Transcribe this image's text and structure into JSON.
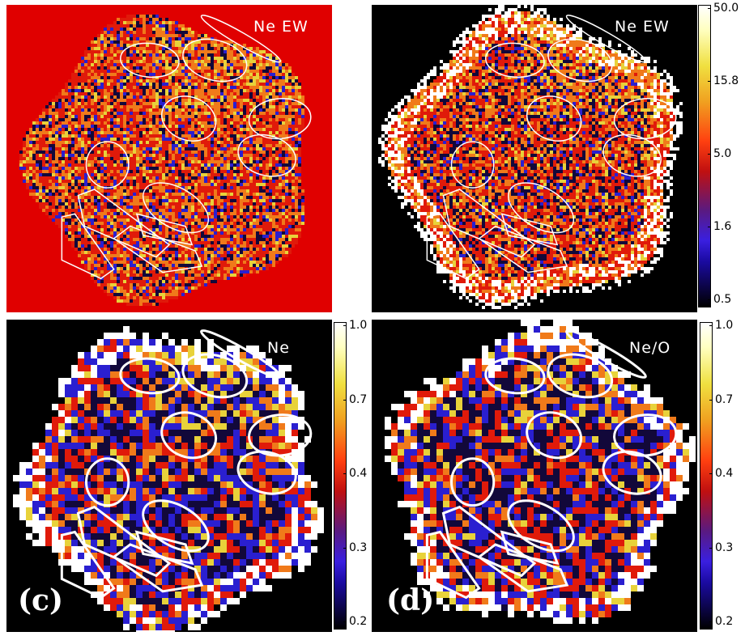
{
  "panels": [
    {
      "id": "a",
      "label": "Ne EW",
      "letter": "",
      "background": "#e00000",
      "cbar": null
    },
    {
      "id": "b",
      "label": "Ne EW",
      "letter": "",
      "background": "#000000",
      "cbar": {
        "ticks": [
          "50.0",
          "15.8",
          "5.0",
          "1.6",
          "0.5"
        ]
      }
    },
    {
      "id": "c",
      "label": "Ne",
      "letter": "(c)",
      "background": "#000000",
      "cbar": {
        "ticks": [
          "1.0",
          "0.7",
          "0.4",
          "0.3",
          "0.2"
        ]
      }
    },
    {
      "id": "d",
      "label": "Ne/O",
      "letter": "(d)",
      "background": "#000000",
      "cbar": {
        "ticks": [
          "1.0",
          "0.7",
          "0.4",
          "0.3",
          "0.2"
        ]
      }
    }
  ],
  "colors": {
    "map_dark": "#12083a",
    "map_blue": "#2a1fd0",
    "map_red": "#e01a0a",
    "map_orange": "#f07a1a",
    "map_yellow": "#e8d23a",
    "map_white": "#ffffff",
    "region_outline": "#ffffff"
  }
}
